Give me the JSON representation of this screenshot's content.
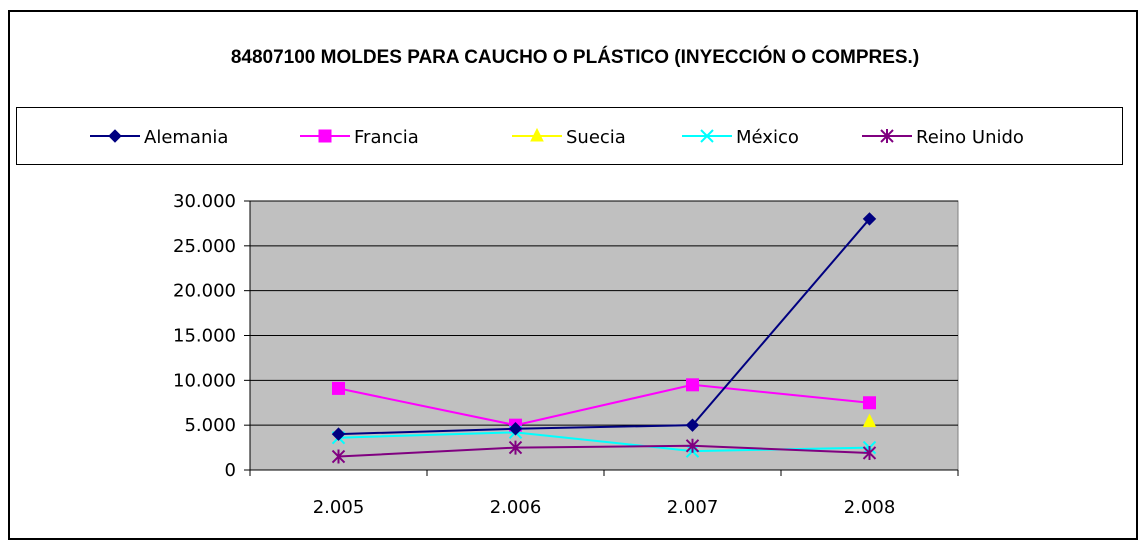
{
  "chart_data": {
    "type": "line",
    "title": "84807100 MOLDES PARA CAUCHO O PLÁSTICO (INYECCIÓN O COMPRES.)",
    "categories": [
      "2.005",
      "2.006",
      "2.007",
      "2.008"
    ],
    "ylim": [
      0,
      30000
    ],
    "yticks": [
      0,
      5000,
      10000,
      15000,
      20000,
      25000,
      30000
    ],
    "ytick_labels": [
      "0",
      "5.000",
      "10.000",
      "15.000",
      "20.000",
      "25.000",
      "30.000"
    ],
    "grid": true,
    "legend_position": "top",
    "plot_background": "#c0c0c0",
    "series": [
      {
        "name": "Alemania",
        "color": "#000080",
        "marker": "diamond",
        "values": [
          4000,
          4600,
          5000,
          28000
        ]
      },
      {
        "name": "Francia",
        "color": "#ff00ff",
        "marker": "square",
        "values": [
          9100,
          5000,
          9500,
          7500
        ]
      },
      {
        "name": "Suecia",
        "color": "#ffff00",
        "marker": "triangle",
        "values": [
          null,
          null,
          null,
          5400
        ]
      },
      {
        "name": "México",
        "color": "#00ffff",
        "marker": "x",
        "values": [
          3600,
          4200,
          2100,
          2500
        ]
      },
      {
        "name": "Reino Unido",
        "color": "#800080",
        "marker": "star",
        "values": [
          1500,
          2500,
          2700,
          1900
        ]
      }
    ]
  }
}
